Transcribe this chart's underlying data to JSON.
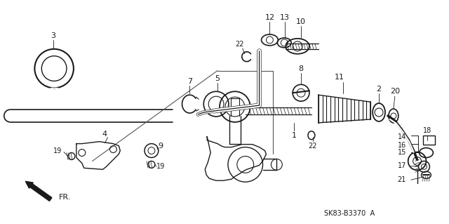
{
  "bg_color": "#ffffff",
  "line_color": "#1a1a1a",
  "diagram_code": "SK83-B3370  A",
  "fr_label": "FR.",
  "figsize": [
    6.4,
    3.19
  ],
  "dpi": 100
}
